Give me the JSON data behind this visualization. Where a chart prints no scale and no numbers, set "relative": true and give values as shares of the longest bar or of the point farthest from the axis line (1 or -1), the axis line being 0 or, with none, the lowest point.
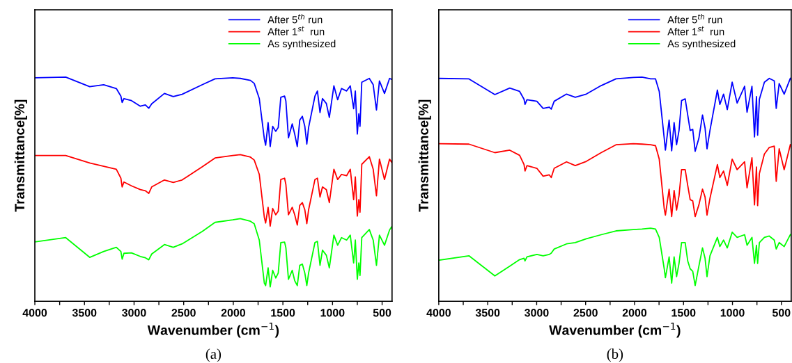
{
  "chart_data": [
    {
      "type": "line",
      "relative": true,
      "xlabel": "Wavenumber (cm$^{−1}$)",
      "ylabel": "Transmittance[%]",
      "annotations": [
        "(a)"
      ],
      "legend": "top right",
      "grid": false,
      "tick_labels": "x",
      "xlim": [
        4000,
        400
      ],
      "xticks": [
        4000,
        {
          "value": 3750,
          "label": null
        },
        3500,
        {
          "value": 3250,
          "label": null
        },
        3000,
        {
          "value": 2750,
          "label": null
        },
        2500,
        {
          "value": 2250,
          "label": null
        },
        2000,
        {
          "value": 1750,
          "label": null
        },
        1500,
        {
          "value": 1250,
          "label": null
        },
        1000,
        {
          "value": 750,
          "label": null
        },
        500
      ],
      "x": [
        4000,
        3689,
        3447,
        3306,
        3179,
        3133,
        3120,
        3102,
        3026,
        2937,
        2886,
        2852,
        2822,
        2694,
        2605,
        2516,
        2312,
        2184,
        2006,
        1929,
        1827,
        1789,
        1738,
        1687,
        1674,
        1649,
        1628,
        1603,
        1572,
        1547,
        1521,
        1483,
        1470,
        1444,
        1406,
        1381,
        1355,
        1330,
        1304,
        1279,
        1259,
        1241,
        1177,
        1152,
        1126,
        1101,
        1062,
        1032,
        986,
        948,
        909,
        858,
        821,
        787,
        770,
        750,
        735,
        723,
        705,
        629,
        590,
        557,
        527,
        476,
        425,
        400
      ],
      "series": [
        {
          "name": "After 5$^{th}$ run",
          "color": "#0000ff",
          "values": [
            0.997,
            1.0,
            0.957,
            0.966,
            0.949,
            0.915,
            0.887,
            0.904,
            0.895,
            0.87,
            0.876,
            0.861,
            0.881,
            0.927,
            0.913,
            0.923,
            0.966,
            0.992,
            0.997,
            0.994,
            0.985,
            0.972,
            0.904,
            0.724,
            0.696,
            0.797,
            0.69,
            0.78,
            0.758,
            0.775,
            0.91,
            0.915,
            0.893,
            0.729,
            0.791,
            0.746,
            0.69,
            0.808,
            0.825,
            0.78,
            0.701,
            0.775,
            0.915,
            0.938,
            0.842,
            0.904,
            0.882,
            0.82,
            0.961,
            0.899,
            0.949,
            0.938,
            0.961,
            0.859,
            0.938,
            0.746,
            0.836,
            0.78,
            0.977,
            0.994,
            0.966,
            0.853,
            0.983,
            0.927,
            0.994,
            0.989
          ]
        },
        {
          "name": "After 1$^{st}$  run",
          "color": "#ff0000",
          "values": [
            0.65,
            0.65,
            0.617,
            0.602,
            0.589,
            0.549,
            0.51,
            0.532,
            0.515,
            0.498,
            0.493,
            0.481,
            0.51,
            0.541,
            0.53,
            0.541,
            0.6,
            0.639,
            0.65,
            0.654,
            0.643,
            0.63,
            0.566,
            0.374,
            0.349,
            0.419,
            0.335,
            0.414,
            0.386,
            0.402,
            0.543,
            0.549,
            0.521,
            0.386,
            0.419,
            0.386,
            0.34,
            0.428,
            0.44,
            0.408,
            0.346,
            0.408,
            0.543,
            0.549,
            0.465,
            0.51,
            0.498,
            0.44,
            0.589,
            0.543,
            0.566,
            0.56,
            0.589,
            0.453,
            0.555,
            0.38,
            0.453,
            0.397,
            0.611,
            0.645,
            0.589,
            0.47,
            0.634,
            0.543,
            0.634,
            0.617
          ]
        },
        {
          "name": "As synthesized",
          "color": "#00ff00",
          "values": [
            0.265,
            0.284,
            0.196,
            0.222,
            0.241,
            0.222,
            0.188,
            0.214,
            0.216,
            0.2,
            0.194,
            0.185,
            0.211,
            0.253,
            0.241,
            0.256,
            0.312,
            0.352,
            0.363,
            0.369,
            0.357,
            0.346,
            0.273,
            0.081,
            0.07,
            0.149,
            0.064,
            0.138,
            0.104,
            0.126,
            0.262,
            0.264,
            0.239,
            0.098,
            0.138,
            0.092,
            0.07,
            0.16,
            0.166,
            0.126,
            0.07,
            0.126,
            0.262,
            0.267,
            0.16,
            0.228,
            0.205,
            0.149,
            0.295,
            0.25,
            0.284,
            0.273,
            0.295,
            0.171,
            0.273,
            0.098,
            0.171,
            0.115,
            0.284,
            0.32,
            0.273,
            0.16,
            0.295,
            0.25,
            0.318,
            0.335
          ]
        }
      ]
    },
    {
      "type": "line",
      "relative": true,
      "xlabel": "Wavenumber (cm$^{−1}$)",
      "ylabel": "Transmittance[%]",
      "annotations": [
        "(b)"
      ],
      "legend": "top right",
      "grid": false,
      "tick_labels": "x",
      "xlim": [
        4000,
        400
      ],
      "xticks": [
        4000,
        {
          "value": 3750,
          "label": null
        },
        3500,
        {
          "value": 3250,
          "label": null
        },
        3000,
        {
          "value": 2750,
          "label": null
        },
        2500,
        {
          "value": 2250,
          "label": null
        },
        2000,
        {
          "value": 1750,
          "label": null
        },
        1500,
        {
          "value": 1250,
          "label": null
        },
        1000,
        {
          "value": 750,
          "label": null
        },
        500
      ],
      "x": [
        4000,
        3692,
        3427,
        3275,
        3174,
        3129,
        3119,
        3099,
        2998,
        2934,
        2871,
        2851,
        2821,
        2695,
        2606,
        2493,
        2341,
        2190,
        2013,
        1924,
        1836,
        1786,
        1748,
        1697,
        1685,
        1647,
        1621,
        1596,
        1571,
        1546,
        1520,
        1483,
        1457,
        1432,
        1406,
        1381,
        1343,
        1306,
        1280,
        1260,
        1230,
        1154,
        1129,
        1091,
        1053,
        1003,
        952,
        876,
        851,
        801,
        775,
        755,
        743,
        725,
        674,
        624,
        573,
        553,
        523,
        472,
        409
      ],
      "series": [
        {
          "name": "After 5$^{th}$ run",
          "color": "#0000ff",
          "values": [
            0.994,
            0.992,
            0.922,
            0.951,
            0.936,
            0.901,
            0.878,
            0.899,
            0.892,
            0.86,
            0.866,
            0.857,
            0.892,
            0.924,
            0.91,
            0.924,
            0.962,
            0.992,
            0.998,
            1.0,
            0.992,
            0.992,
            0.936,
            0.727,
            0.674,
            0.808,
            0.671,
            0.797,
            0.698,
            0.762,
            0.895,
            0.903,
            0.831,
            0.762,
            0.767,
            0.669,
            0.727,
            0.831,
            0.773,
            0.68,
            0.762,
            0.942,
            0.878,
            0.924,
            0.855,
            0.977,
            0.884,
            0.959,
            0.843,
            0.959,
            0.733,
            0.913,
            0.741,
            0.901,
            0.977,
            0.994,
            0.983,
            0.86,
            0.971,
            0.924,
            0.994
          ]
        },
        {
          "name": "After 1$^{st}$  run",
          "color": "#ff0000",
          "values": [
            0.703,
            0.701,
            0.663,
            0.674,
            0.651,
            0.61,
            0.581,
            0.605,
            0.593,
            0.558,
            0.564,
            0.552,
            0.593,
            0.622,
            0.605,
            0.624,
            0.663,
            0.698,
            0.703,
            0.701,
            0.698,
            0.694,
            0.634,
            0.413,
            0.384,
            0.5,
            0.378,
            0.494,
            0.407,
            0.471,
            0.587,
            0.587,
            0.517,
            0.453,
            0.448,
            0.378,
            0.43,
            0.5,
            0.465,
            0.384,
            0.459,
            0.61,
            0.552,
            0.581,
            0.517,
            0.634,
            0.587,
            0.622,
            0.506,
            0.64,
            0.43,
            0.599,
            0.427,
            0.57,
            0.657,
            0.686,
            0.692,
            0.535,
            0.68,
            0.587,
            0.698
          ]
        },
        {
          "name": "As synthesized",
          "color": "#00ff00",
          "values": [
            0.183,
            0.203,
            0.113,
            0.157,
            0.186,
            0.192,
            0.18,
            0.198,
            0.209,
            0.203,
            0.209,
            0.215,
            0.233,
            0.256,
            0.262,
            0.279,
            0.297,
            0.314,
            0.32,
            0.322,
            0.326,
            0.322,
            0.285,
            0.145,
            0.105,
            0.198,
            0.081,
            0.198,
            0.11,
            0.169,
            0.262,
            0.262,
            0.18,
            0.145,
            0.134,
            0.07,
            0.157,
            0.238,
            0.192,
            0.11,
            0.203,
            0.285,
            0.244,
            0.273,
            0.238,
            0.308,
            0.285,
            0.297,
            0.25,
            0.285,
            0.169,
            0.25,
            0.169,
            0.262,
            0.285,
            0.291,
            0.273,
            0.233,
            0.262,
            0.244,
            0.297
          ]
        }
      ]
    }
  ]
}
